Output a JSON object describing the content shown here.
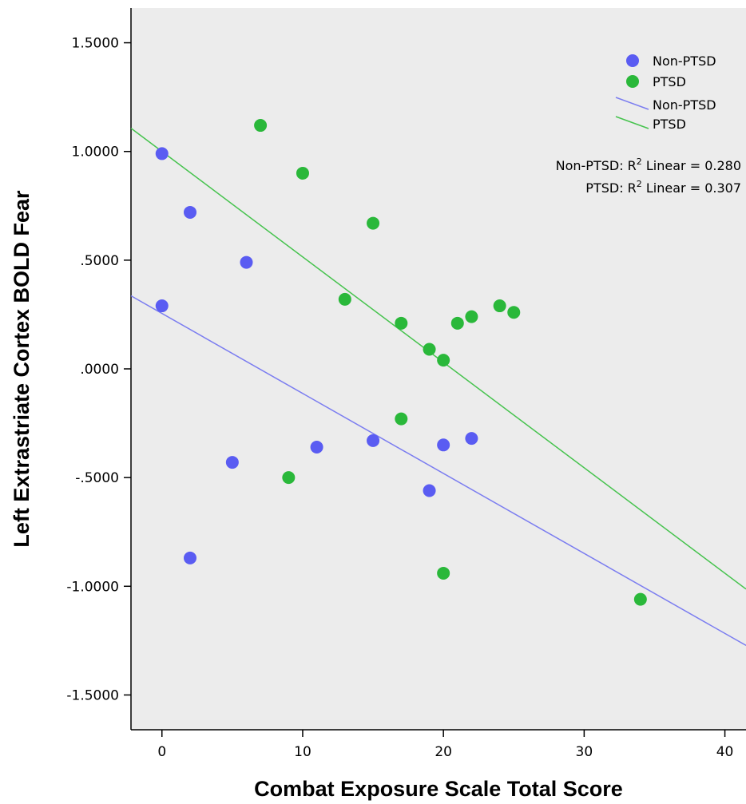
{
  "chart_data": {
    "type": "scatter",
    "title": "",
    "xlabel": "Combat Exposure Scale Total Score",
    "ylabel": "Left Extrastriate Cortex BOLD Fear",
    "xlim": [
      -2.2,
      41.5
    ],
    "ylim": [
      -1.66,
      1.66
    ],
    "x_ticks": [
      0,
      10,
      20,
      30,
      40
    ],
    "x_tick_labels": [
      "0",
      "10",
      "20",
      "30",
      "40"
    ],
    "y_ticks": [
      1.5,
      1.0,
      0.5,
      0.0,
      -0.5,
      -1.0,
      -1.5
    ],
    "y_tick_labels": [
      "1.5000",
      "1.0000",
      ".5000",
      ".0000",
      "-.5000",
      "-1.0000",
      "-1.5000"
    ],
    "grid": false,
    "background": "#ececec",
    "legend_position": "top-right",
    "series": [
      {
        "name": "Non-PTSD",
        "color": "#5a5cf2",
        "points": [
          {
            "x": 0,
            "y": 0.99
          },
          {
            "x": 0,
            "y": 0.29
          },
          {
            "x": 2,
            "y": 0.72
          },
          {
            "x": 2,
            "y": -0.87
          },
          {
            "x": 5,
            "y": -0.43
          },
          {
            "x": 6,
            "y": 0.49
          },
          {
            "x": 11,
            "y": -0.36
          },
          {
            "x": 15,
            "y": -0.33
          },
          {
            "x": 19,
            "y": -0.56
          },
          {
            "x": 20,
            "y": -0.35
          },
          {
            "x": 22,
            "y": -0.32
          }
        ]
      },
      {
        "name": "PTSD",
        "color": "#2ab83a",
        "points": [
          {
            "x": 7,
            "y": 1.12
          },
          {
            "x": 9,
            "y": -0.5
          },
          {
            "x": 10,
            "y": 0.9
          },
          {
            "x": 13,
            "y": 0.32
          },
          {
            "x": 15,
            "y": 0.67
          },
          {
            "x": 17,
            "y": 0.21
          },
          {
            "x": 17,
            "y": -0.23
          },
          {
            "x": 19,
            "y": 0.09
          },
          {
            "x": 20,
            "y": 0.04
          },
          {
            "x": 20,
            "y": -0.94
          },
          {
            "x": 21,
            "y": 0.21
          },
          {
            "x": 22,
            "y": 0.24
          },
          {
            "x": 24,
            "y": 0.29
          },
          {
            "x": 25,
            "y": 0.26
          },
          {
            "x": 34,
            "y": -1.06
          }
        ]
      }
    ],
    "fit_lines": [
      {
        "name": "Non-PTSD",
        "color": "#7b7df0",
        "intercept": 0.255,
        "slope": -0.0368,
        "r2_label": "Non-PTSD: R",
        "r2_suffix": " Linear = 0.280"
      },
      {
        "name": "PTSD",
        "color": "#46c34e",
        "intercept": 1.0,
        "slope": -0.0485,
        "r2_label": "PTSD: R",
        "r2_suffix": " Linear = 0.307"
      }
    ],
    "r2_superscript": "2"
  }
}
